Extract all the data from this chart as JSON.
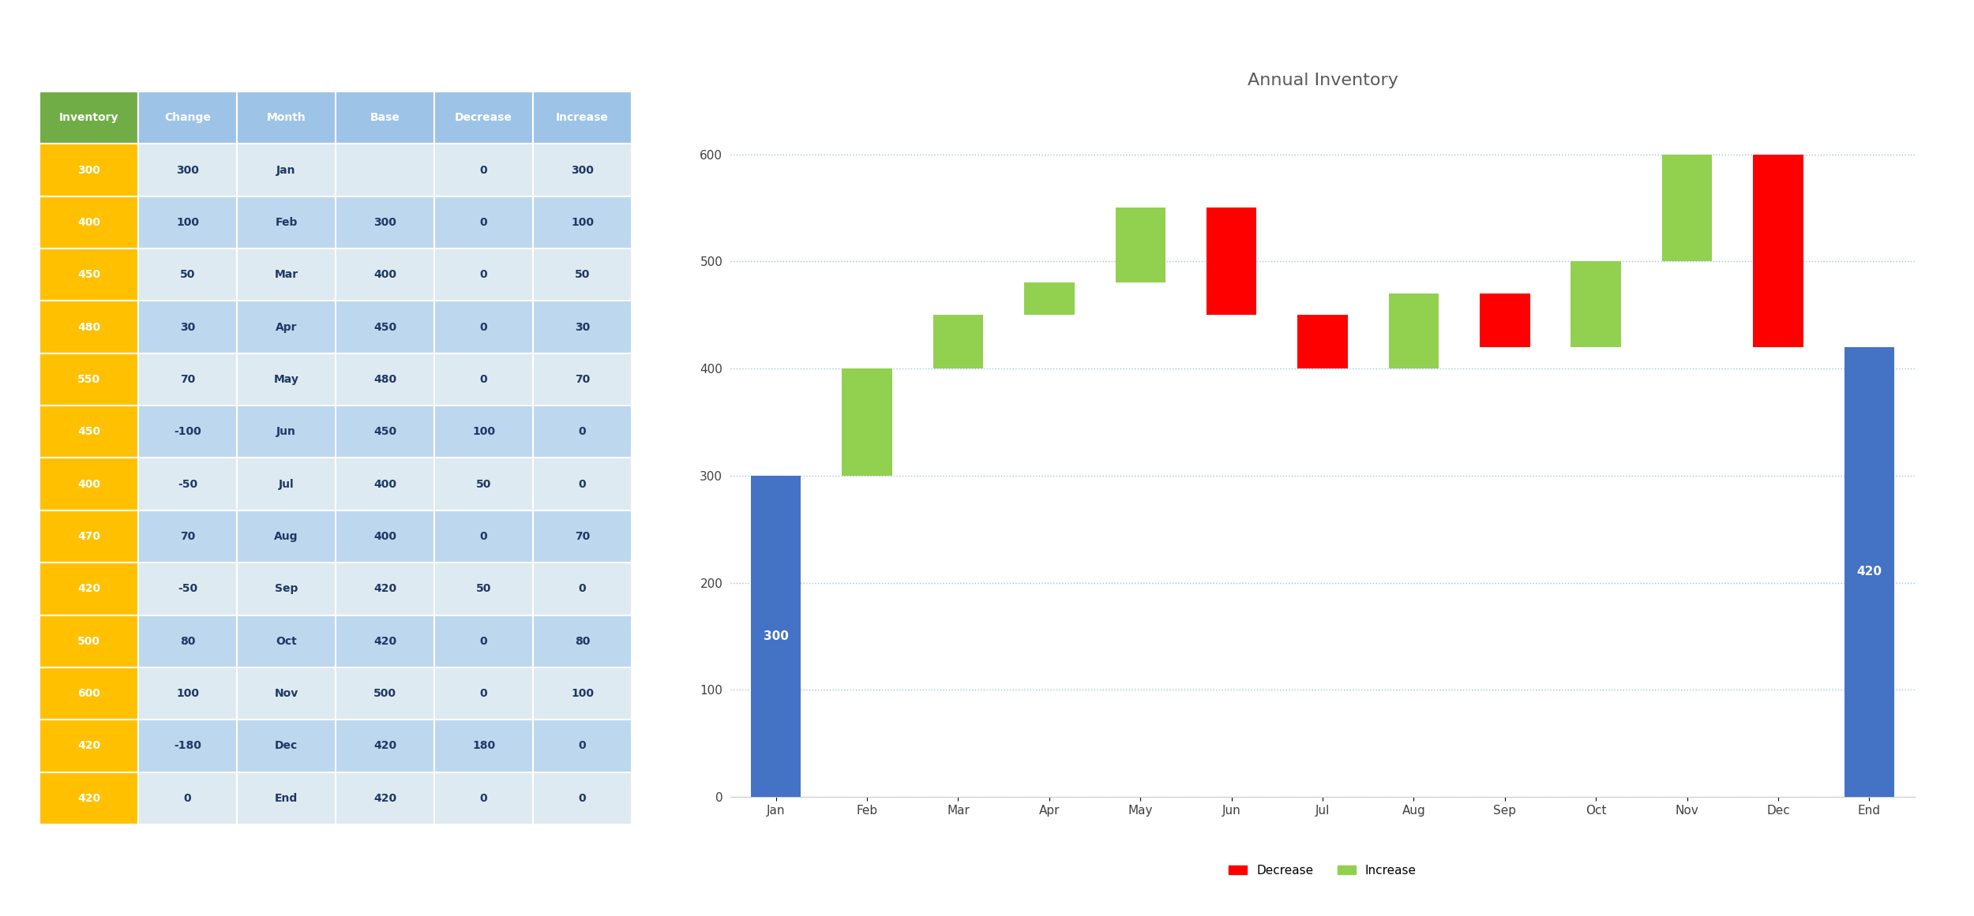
{
  "title": "Annual Inventory",
  "months": [
    "Jan",
    "Feb",
    "Mar",
    "Apr",
    "May",
    "Jun",
    "Jul",
    "Aug",
    "Sep",
    "Oct",
    "Nov",
    "Dec",
    "End"
  ],
  "inventory": [
    300,
    400,
    450,
    480,
    550,
    450,
    400,
    470,
    420,
    500,
    600,
    420,
    420
  ],
  "change": [
    300,
    100,
    50,
    30,
    70,
    -100,
    -50,
    70,
    -50,
    80,
    100,
    -180,
    0
  ],
  "base": [
    0,
    300,
    400,
    450,
    480,
    450,
    400,
    400,
    420,
    420,
    500,
    420,
    420
  ],
  "decrease": [
    0,
    0,
    0,
    0,
    0,
    100,
    50,
    0,
    50,
    0,
    0,
    180,
    0
  ],
  "increase": [
    300,
    100,
    50,
    30,
    70,
    0,
    0,
    70,
    0,
    80,
    100,
    0,
    0
  ],
  "color_increase": "#92D050",
  "color_decrease": "#FF0000",
  "color_total": "#4472C4",
  "ylim": [
    0,
    650
  ],
  "yticks": [
    0,
    100,
    200,
    300,
    400,
    500,
    600
  ],
  "grid_color": "#9DC3E6",
  "table_header_inv_color": "#70AD47",
  "table_header_other_color": "#9DC3E6",
  "table_inv_col_color": "#FFC000",
  "table_other_col_light": "#DEEAF1",
  "table_other_col_dark": "#BDD7EE",
  "table_data": {
    "inventory": [
      300,
      400,
      450,
      480,
      550,
      450,
      400,
      470,
      420,
      500,
      600,
      420,
      420
    ],
    "change": [
      300,
      100,
      50,
      30,
      70,
      -100,
      -50,
      70,
      -50,
      80,
      100,
      -180,
      0
    ],
    "month": [
      "Jan",
      "Feb",
      "Mar",
      "Apr",
      "May",
      "Jun",
      "Jul",
      "Aug",
      "Sep",
      "Oct",
      "Nov",
      "Dec",
      "End"
    ],
    "base": [
      "",
      300,
      400,
      450,
      480,
      450,
      400,
      400,
      420,
      420,
      500,
      420,
      420
    ],
    "decrease": [
      0,
      0,
      0,
      0,
      0,
      100,
      50,
      0,
      50,
      0,
      0,
      180,
      0
    ],
    "increase": [
      300,
      100,
      50,
      30,
      70,
      0,
      0,
      70,
      0,
      80,
      100,
      0,
      0
    ]
  }
}
